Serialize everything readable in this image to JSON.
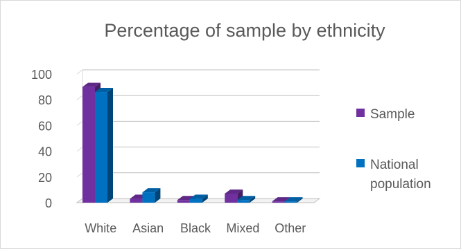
{
  "chart_data": {
    "type": "bar",
    "title": "Percentage of sample by ethnicity",
    "categories": [
      "White",
      "Asian",
      "Black",
      "Mixed",
      "Other"
    ],
    "series": [
      {
        "name": "Sample",
        "values": [
          90,
          3,
          2,
          7,
          1
        ],
        "color": "#7030a0"
      },
      {
        "name": "National population",
        "values": [
          86,
          8,
          3,
          2,
          1
        ],
        "color": "#0070c0"
      }
    ],
    "ylim": [
      0,
      100
    ],
    "yticks": [
      0,
      20,
      40,
      60,
      80,
      100
    ],
    "grid": true,
    "three_d": true,
    "legend": "right"
  }
}
